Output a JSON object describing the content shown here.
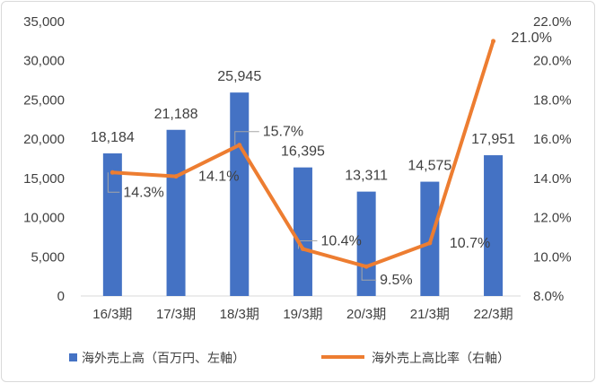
{
  "chart_data": {
    "type": "bar+line",
    "categories": [
      "16/3期",
      "17/3期",
      "18/3期",
      "19/3期",
      "20/3期",
      "21/3期",
      "22/3期"
    ],
    "series": [
      {
        "name": "海外売上高（百万円、左軸）",
        "type": "bar",
        "axis": "left",
        "color": "#4472c4",
        "values": [
          18184,
          21188,
          25945,
          16395,
          13311,
          14575,
          17951
        ],
        "labels": [
          "18,184",
          "21,188",
          "25,945",
          "16,395",
          "13,311",
          "14,575",
          "17,951"
        ]
      },
      {
        "name": "海外売上高比率（右軸）",
        "type": "line",
        "axis": "right",
        "color": "#ed7d31",
        "values": [
          14.3,
          14.1,
          15.7,
          10.4,
          9.5,
          10.7,
          21.0
        ],
        "labels": [
          "14.3%",
          "14.1%",
          "15.7%",
          "10.4%",
          "9.5%",
          "10.7%",
          "21.0%"
        ]
      }
    ],
    "y_left": {
      "min": 0,
      "max": 35000,
      "step": 5000,
      "tick_labels": [
        "0",
        "5,000",
        "10,000",
        "15,000",
        "20,000",
        "25,000",
        "30,000",
        "35,000"
      ]
    },
    "y_right": {
      "min": 8.0,
      "max": 22.0,
      "step": 2.0,
      "tick_labels": [
        "8.0%",
        "10.0%",
        "12.0%",
        "14.0%",
        "16.0%",
        "18.0%",
        "20.0%",
        "22.0%"
      ]
    },
    "grid": false,
    "legend_position": "bottom"
  }
}
